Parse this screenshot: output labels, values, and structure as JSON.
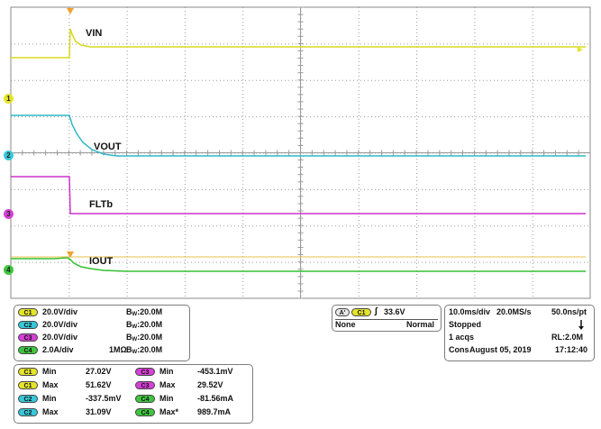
{
  "labels": {
    "vin": "VIN",
    "vout": "VOUT",
    "fltb": "FLTb",
    "iout": "IOUT"
  },
  "channel_markers": [
    "1",
    "2",
    "3",
    "4"
  ],
  "colors": {
    "ch1": "#e5e52a",
    "ch2": "#36c8d8",
    "ch3": "#d640d6",
    "ch4": "#3fc53f",
    "trigger": "#f0a030",
    "grid": "#9a9a9a"
  },
  "channels": [
    {
      "badge": "C1",
      "scale": "20.0V/div",
      "coupling": "",
      "bw_prefix": "B",
      "bw_sub": "W",
      "bw_value": ":20.0M"
    },
    {
      "badge": "C2",
      "scale": "20.0V/div",
      "coupling": "",
      "bw_prefix": "B",
      "bw_sub": "W",
      "bw_value": ":20.0M"
    },
    {
      "badge": "C3",
      "scale": "20.0V/div",
      "coupling": "",
      "bw_prefix": "B",
      "bw_sub": "W",
      "bw_value": ":20.0M"
    },
    {
      "badge": "C4",
      "scale": "2.0A/div",
      "coupling": "1MΩ",
      "bw_prefix": "B",
      "bw_sub": "W",
      "bw_value": ":20.0M"
    }
  ],
  "trigger": {
    "badge_a": "A'",
    "badge_ch": "C1",
    "slope": "∫",
    "level": "33.6V",
    "source": "None",
    "mode": "Normal"
  },
  "timebase": {
    "scale": "10.0ms/div",
    "rate": "20.0MS/s",
    "per_point": "50.0ns/pt",
    "state": "Stopped",
    "acqs": "1 acqs",
    "record": "RL:2.0M",
    "cons": "Cons",
    "date": "August 05, 2019",
    "time": "17:12:40"
  },
  "measurements": [
    {
      "badge": "C1",
      "name": "Min",
      "value": "27.02V"
    },
    {
      "badge": "C1",
      "name": "Max",
      "value": "51.62V"
    },
    {
      "badge": "C2",
      "name": "Min",
      "value": "-337.5mV"
    },
    {
      "badge": "C2",
      "name": "Max",
      "value": "31.09V"
    },
    {
      "badge": "C3",
      "name": "Min",
      "value": "-453.1mV"
    },
    {
      "badge": "C3",
      "name": "Max",
      "value": "29.52V"
    },
    {
      "badge": "C4",
      "name": "Min",
      "value": "-81.56mA"
    },
    {
      "badge": "C4",
      "name": "Max*",
      "value": "989.7mA"
    }
  ]
}
